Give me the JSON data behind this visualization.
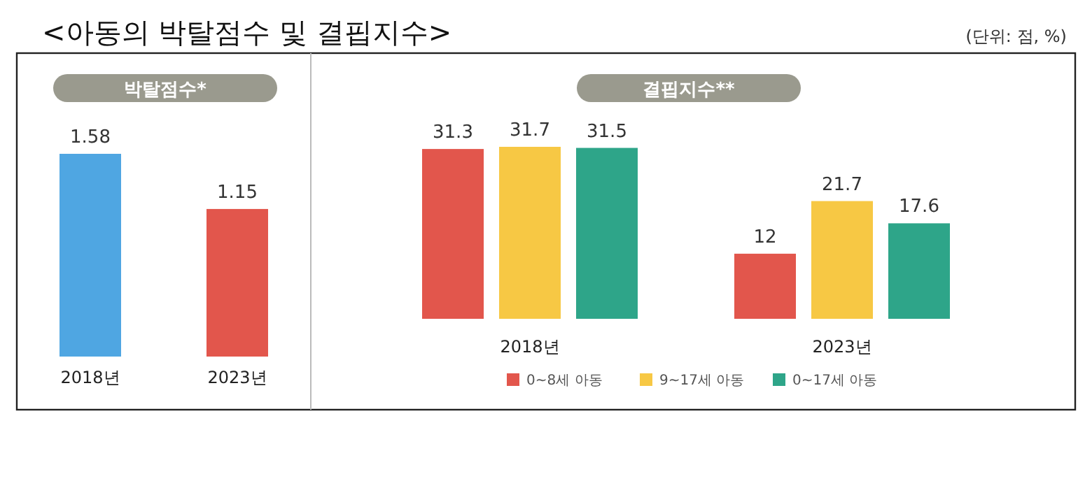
{
  "chart_data": [
    {
      "type": "bar",
      "title": "<아동의 박탈점수 및 결핍지수>",
      "subtitle": "박탈점수*",
      "annotations": [
        "(단위: 점, %)"
      ],
      "categories": [
        "2018년",
        "2023년"
      ],
      "values": [
        1.58,
        1.15
      ],
      "colors": [
        "#4fa6e2",
        "#e2564c"
      ],
      "data_labels": true
    },
    {
      "type": "bar",
      "title": "결핍지수**",
      "categories": [
        "2018년",
        "2023년"
      ],
      "legend": "bottom",
      "data_labels": true,
      "series": [
        {
          "name": "0~8세 아동",
          "color": "#e2564c",
          "values": [
            31.3,
            12
          ]
        },
        {
          "name": "9~17세 아동",
          "color": "#f7c844",
          "values": [
            31.7,
            21.7
          ]
        },
        {
          "name": "0~17세 아동",
          "color": "#2ea589",
          "values": [
            31.5,
            17.6
          ]
        }
      ]
    }
  ]
}
